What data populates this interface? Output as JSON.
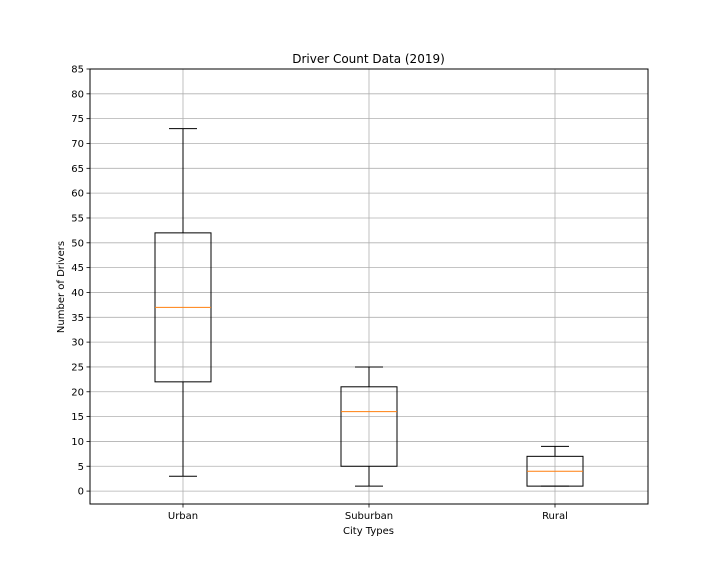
{
  "chart_data": {
    "type": "box",
    "title": "Driver Count Data (2019)",
    "xlabel": "City Types",
    "ylabel": "Number of Drivers",
    "ylim": [
      -2.6,
      85
    ],
    "yticks": [
      0,
      5,
      10,
      15,
      20,
      25,
      30,
      35,
      40,
      45,
      50,
      55,
      60,
      65,
      70,
      75,
      80,
      85
    ],
    "grid": true,
    "categories": [
      "Urban",
      "Suburban",
      "Rural"
    ],
    "boxes": [
      {
        "category": "Urban",
        "whisker_low": 3,
        "q1": 22,
        "median": 37,
        "q3": 52,
        "whisker_high": 73
      },
      {
        "category": "Suburban",
        "whisker_low": 1,
        "q1": 5,
        "median": 16,
        "q3": 21,
        "whisker_high": 25
      },
      {
        "category": "Rural",
        "whisker_low": 1,
        "q1": 1,
        "median": 4,
        "q3": 7,
        "whisker_high": 9
      }
    ],
    "colors": {
      "box": "#000000",
      "median": "#ff7f0e",
      "grid": "#b0b0b0"
    }
  }
}
